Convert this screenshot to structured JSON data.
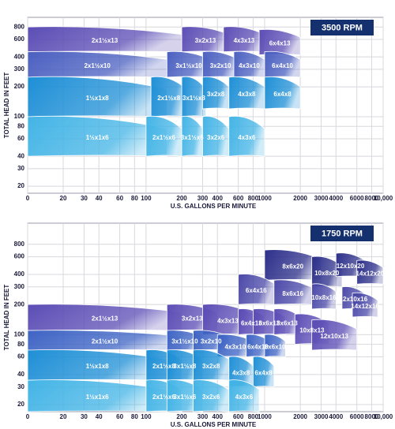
{
  "chart_data": [
    {
      "type": "coverage",
      "title": "3500 RPM",
      "xlabel": "U.S. GALLONS PER MINUTE",
      "ylabel": "TOTAL HEAD IN FEET",
      "xscale": "log",
      "yscale": "log",
      "grid": true,
      "xlim": [
        0,
        10000
      ],
      "xticks": [
        0,
        20,
        30,
        40,
        60,
        80,
        100,
        200,
        300,
        400,
        600,
        800,
        1000,
        2000,
        3000,
        4000,
        6000,
        8000,
        {
          "value": 10000,
          "label": "10,000"
        }
      ],
      "ylim": [
        17,
        1000
      ],
      "yticks": [
        20,
        30,
        40,
        60,
        80,
        100,
        200,
        300,
        400,
        600,
        800
      ],
      "zones": [
        {
          "label": "2x1½x13",
          "x": [
            0,
            200
          ],
          "y": [
            450,
            800
          ],
          "color": "#5b4db5"
        },
        {
          "label": "3x2x13",
          "x": [
            200,
            500
          ],
          "y": [
            450,
            800
          ],
          "color": "#5b4db5"
        },
        {
          "label": "4x3x13",
          "x": [
            450,
            1000
          ],
          "y": [
            450,
            800
          ],
          "color": "#5b4db5"
        },
        {
          "label": "6x4x13",
          "x": [
            900,
            2000
          ],
          "y": [
            420,
            750
          ],
          "color": "#5b4db5"
        },
        {
          "label": "2x1½x10",
          "x": [
            0,
            150
          ],
          "y": [
            250,
            450
          ],
          "color": "#4a5fc0"
        },
        {
          "label": "3x1½x10",
          "x": [
            150,
            350
          ],
          "y": [
            250,
            450
          ],
          "color": "#4a5fc0"
        },
        {
          "label": "3x2x10",
          "x": [
            300,
            600
          ],
          "y": [
            250,
            450
          ],
          "color": "#4a5fc0"
        },
        {
          "label": "4x3x10",
          "x": [
            550,
            1000
          ],
          "y": [
            250,
            450
          ],
          "color": "#4a5fc0"
        },
        {
          "label": "6x4x10",
          "x": [
            1000,
            2000
          ],
          "y": [
            250,
            450
          ],
          "color": "#4a5fc0"
        },
        {
          "label": "1½x1x8",
          "x": [
            0,
            150
          ],
          "y": [
            100,
            250
          ],
          "color": "#1e8fd6"
        },
        {
          "label": "2x1½x8",
          "x": [
            110,
            220
          ],
          "y": [
            100,
            250
          ],
          "color": "#1e8fd6"
        },
        {
          "label": "3x1½x8",
          "x": [
            200,
            320
          ],
          "y": [
            100,
            250
          ],
          "color": "#1e8fd6"
        },
        {
          "label": "3x2x8",
          "x": [
            300,
            500
          ],
          "y": [
            120,
            250
          ],
          "color": "#1e8fd6"
        },
        {
          "label": "4x3x8",
          "x": [
            500,
            1000
          ],
          "y": [
            120,
            250
          ],
          "color": "#1e8fd6"
        },
        {
          "label": "6x4x8",
          "x": [
            1000,
            2000
          ],
          "y": [
            120,
            250
          ],
          "color": "#1e8fd6"
        },
        {
          "label": "1½x1x6",
          "x": [
            0,
            150
          ],
          "y": [
            40,
            100
          ],
          "color": "#43b4e6"
        },
        {
          "label": "2x1½x6",
          "x": [
            100,
            200
          ],
          "y": [
            40,
            100
          ],
          "color": "#43b4e6"
        },
        {
          "label": "3x1½x6",
          "x": [
            200,
            300
          ],
          "y": [
            40,
            100
          ],
          "color": "#43b4e6"
        },
        {
          "label": "3x2x6",
          "x": [
            300,
            500
          ],
          "y": [
            40,
            100
          ],
          "color": "#43b4e6"
        },
        {
          "label": "4x3x6",
          "x": [
            500,
            1000
          ],
          "y": [
            40,
            100
          ],
          "color": "#43b4e6"
        }
      ]
    },
    {
      "type": "coverage",
      "title": "1750 RPM",
      "xlabel": "U.S. GALLONS PER MINUTE",
      "ylabel": "TOTAL HEAD IN FEET",
      "xscale": "log",
      "yscale": "log",
      "grid": true,
      "xlim": [
        0,
        10000
      ],
      "xticks": [
        0,
        20,
        30,
        40,
        60,
        80,
        100,
        200,
        300,
        400,
        600,
        800,
        1000,
        2000,
        3000,
        4000,
        6000,
        8000,
        {
          "value": 10000,
          "label": "10,000"
        }
      ],
      "ylim": [
        17,
        1300
      ],
      "yticks": [
        20,
        30,
        40,
        60,
        80,
        100,
        200,
        300,
        400,
        600,
        800
      ],
      "zones": [
        {
          "label": "8x6x20",
          "x": [
            1000,
            3000
          ],
          "y": [
            350,
            700
          ],
          "color": "#2c2f8a"
        },
        {
          "label": "10x8x20",
          "x": [
            2500,
            4500
          ],
          "y": [
            300,
            600
          ],
          "color": "#2c2f8a"
        },
        {
          "label": "12x10x20",
          "x": [
            4000,
            7000
          ],
          "y": [
            380,
            650
          ],
          "color": "#2c2f8a"
        },
        {
          "label": "14x12x20",
          "x": [
            6000,
            10000
          ],
          "y": [
            320,
            550
          ],
          "color": "#2c2f8a"
        },
        {
          "label": "6x4x16",
          "x": [
            600,
            1200
          ],
          "y": [
            200,
            400
          ],
          "color": "#4a48a8"
        },
        {
          "label": "8x6x16",
          "x": [
            1200,
            2500
          ],
          "y": [
            200,
            350
          ],
          "color": "#4a48a8"
        },
        {
          "label": "10x8x16",
          "x": [
            2500,
            4000
          ],
          "y": [
            180,
            320
          ],
          "color": "#4a48a8"
        },
        {
          "label": "12x10x16",
          "x": [
            4500,
            7000
          ],
          "y": [
            180,
            300
          ],
          "color": "#4a48a8"
        },
        {
          "label": "14x12x16",
          "x": [
            5500,
            9000
          ],
          "y": [
            150,
            260
          ],
          "color": "#4a48a8"
        },
        {
          "label": "2x1½x13",
          "x": [
            0,
            200
          ],
          "y": [
            110,
            200
          ],
          "color": "#5b4db5"
        },
        {
          "label": "3x2x13",
          "x": [
            150,
            400
          ],
          "y": [
            110,
            200
          ],
          "color": "#5b4db5"
        },
        {
          "label": "4x3x13",
          "x": [
            300,
            800
          ],
          "y": [
            100,
            200
          ],
          "color": "#5b4db5"
        },
        {
          "label": "6x4x13",
          "x": [
            600,
            1000
          ],
          "y": [
            100,
            180
          ],
          "color": "#5b4db5"
        },
        {
          "label": "6x6x13",
          "x": [
            800,
            1500
          ],
          "y": [
            100,
            180
          ],
          "color": "#5b4db5"
        },
        {
          "label": "8x6x13",
          "x": [
            1200,
            2000
          ],
          "y": [
            100,
            180
          ],
          "color": "#5b4db5"
        },
        {
          "label": "10x8x13",
          "x": [
            1800,
            3500
          ],
          "y": [
            80,
            160
          ],
          "color": "#5b4db5"
        },
        {
          "label": "12x10x13",
          "x": [
            2500,
            6000
          ],
          "y": [
            70,
            140
          ],
          "color": "#5b4db5"
        },
        {
          "label": "2x1½x10",
          "x": [
            0,
            200
          ],
          "y": [
            70,
            110
          ],
          "color": "#3d63c4"
        },
        {
          "label": "3x1½x10",
          "x": [
            150,
            300
          ],
          "y": [
            70,
            110
          ],
          "color": "#3d63c4"
        },
        {
          "label": "3x2x10",
          "x": [
            250,
            500
          ],
          "y": [
            70,
            110
          ],
          "color": "#3d63c4"
        },
        {
          "label": "4x3x10",
          "x": [
            400,
            800
          ],
          "y": [
            60,
            100
          ],
          "color": "#3d63c4"
        },
        {
          "label": "6x4x10",
          "x": [
            700,
            1100
          ],
          "y": [
            60,
            100
          ],
          "color": "#3d63c4"
        },
        {
          "label": "8x6x10",
          "x": [
            1000,
            1500
          ],
          "y": [
            60,
            100
          ],
          "color": "#3d63c4"
        },
        {
          "label": "1½x1x8",
          "x": [
            0,
            150
          ],
          "y": [
            35,
            70
          ],
          "color": "#1e8fd6"
        },
        {
          "label": "2x1½x8",
          "x": [
            100,
            200
          ],
          "y": [
            35,
            70
          ],
          "color": "#1e8fd6"
        },
        {
          "label": "3x1½x8",
          "x": [
            150,
            300
          ],
          "y": [
            35,
            70
          ],
          "color": "#1e8fd6"
        },
        {
          "label": "3x2x8",
          "x": [
            250,
            500
          ],
          "y": [
            35,
            70
          ],
          "color": "#1e8fd6"
        },
        {
          "label": "4x3x8",
          "x": [
            500,
            800
          ],
          "y": [
            30,
            60
          ],
          "color": "#1e8fd6"
        },
        {
          "label": "6x4x8",
          "x": [
            800,
            1200
          ],
          "y": [
            30,
            60
          ],
          "color": "#1e8fd6"
        },
        {
          "label": "1½x1x6",
          "x": [
            0,
            150
          ],
          "y": [
            17,
            35
          ],
          "color": "#43b4e6"
        },
        {
          "label": "2x1½x6",
          "x": [
            100,
            200
          ],
          "y": [
            17,
            35
          ],
          "color": "#43b4e6"
        },
        {
          "label": "3x1½x6",
          "x": [
            150,
            300
          ],
          "y": [
            17,
            35
          ],
          "color": "#43b4e6"
        },
        {
          "label": "3x2x6",
          "x": [
            250,
            500
          ],
          "y": [
            17,
            35
          ],
          "color": "#43b4e6"
        },
        {
          "label": "4x3x6",
          "x": [
            500,
            900
          ],
          "y": [
            17,
            35
          ],
          "color": "#43b4e6"
        }
      ]
    }
  ]
}
